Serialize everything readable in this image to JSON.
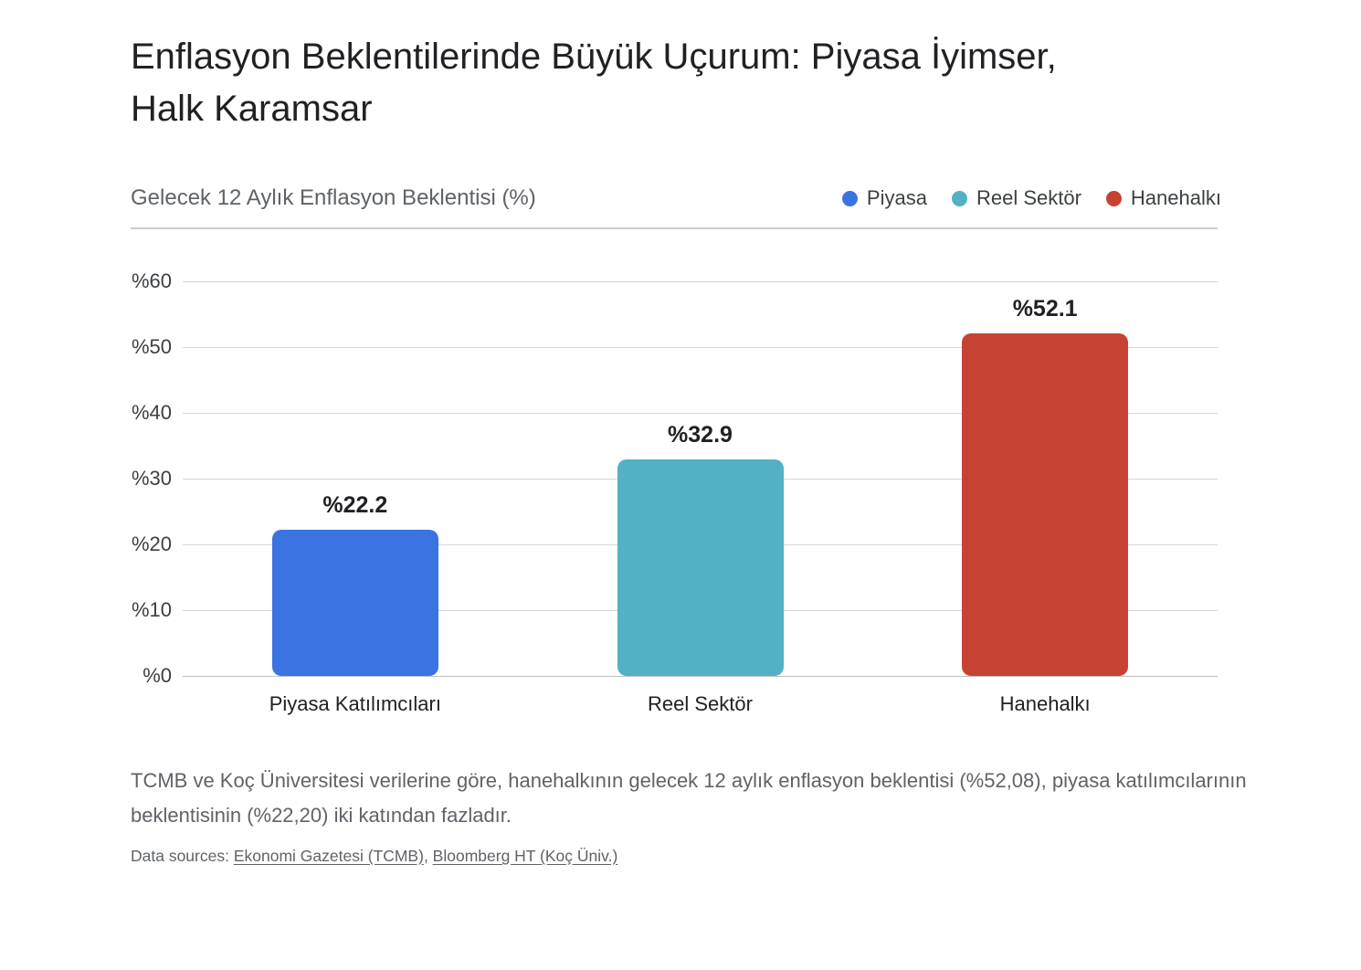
{
  "page": {
    "title_line1": "Enflasyon Beklentilerinde Büyük Uçurum: Piyasa İyimser,",
    "title_line2": "Halk Karamsar",
    "subtitle": "Gelecek 12 Aylık Enflasyon Beklentisi (%)",
    "caption": "TCMB ve Koç Üniversitesi verilerine göre, hanehalkının gelecek 12 aylık enflasyon beklentisi (%52,08), piyasa katılımcılarının beklentisinin (%22,20) iki katından fazladır.",
    "sources_prefix": "Data sources: ",
    "sources_separator": ", ",
    "source_links": [
      "Ekonomi Gazetesi (TCMB)",
      "Bloomberg HT (Koç Üniv.)"
    ]
  },
  "colors": {
    "piyasa_blue": "#3b73e0",
    "reel_teal": "#52b1c5",
    "hane_red": "#c64334",
    "title_text": "#202124",
    "muted_text": "#5f6368",
    "axis_text": "#3c4043",
    "gridline": "#d6d6d6",
    "divider": "#cccccc"
  },
  "legend": [
    {
      "label": "Piyasa",
      "color": "#3b73e0"
    },
    {
      "label": "Reel Sektör",
      "color": "#52b1c5"
    },
    {
      "label": "Hanehalkı",
      "color": "#c64334"
    }
  ],
  "chart_data": {
    "type": "bar",
    "title": "Gelecek 12 Aylık Enflasyon Beklentisi (%)",
    "categories": [
      "Piyasa Katılımcıları",
      "Reel Sektör",
      "Hanehalkı"
    ],
    "values": [
      22.2,
      32.9,
      52.1
    ],
    "value_labels": [
      "%22.2",
      "%32.9",
      "%52.1"
    ],
    "bar_colors": [
      "#3b73e0",
      "#52b1c5",
      "#c64334"
    ],
    "legend_entries": [
      "Piyasa",
      "Reel Sektör",
      "Hanehalkı"
    ],
    "xlabel": "",
    "ylabel": "",
    "ylim": [
      0,
      60
    ],
    "yticks": [
      0,
      10,
      20,
      30,
      40,
      50,
      60
    ],
    "ytick_labels": [
      "%0",
      "%10",
      "%20",
      "%30",
      "%40",
      "%50",
      "%60"
    ],
    "grid": true,
    "legend_position": "top-right"
  }
}
